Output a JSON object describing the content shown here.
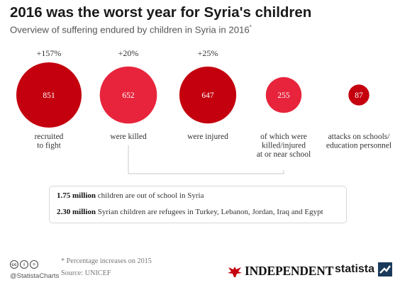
{
  "header": {
    "title": "2016 was the worst year for Syria's children",
    "subtitle": "Overview of suffering endured by children in Syria in 2016",
    "subtitle_mark": "*"
  },
  "chart_data": {
    "type": "bubble",
    "categories": [
      "recruited to fight",
      "were killed",
      "were injured",
      "of which were killed/injured at or near school",
      "attacks on schools/ education personnel"
    ],
    "values": [
      851,
      652,
      647,
      255,
      87
    ],
    "changes": [
      "+157%",
      "+20%",
      "+25%",
      "",
      ""
    ],
    "label_lines": [
      [
        "recruited",
        "to fight"
      ],
      [
        "were killed"
      ],
      [
        "were injured"
      ],
      [
        "of which were",
        "killed/injured",
        "at or near school"
      ],
      [
        "attacks on schools/",
        "education personnel"
      ]
    ],
    "colors": [
      "#c4000e",
      "#e8243c",
      "#c4000e",
      "#e8243c",
      "#c4000e"
    ]
  },
  "info": {
    "row1_amount": "1.75 million",
    "row1_text": "children are out of school in Syria",
    "row2_amount": "2.30 million",
    "row2_text": "Syrian children are refugees in Turkey, Lebanon, Jordan, Iraq and Egypt"
  },
  "footer": {
    "note": "* Percentage increases on 2015",
    "source": "Source: UNICEF",
    "handle": "@StatistaCharts",
    "cc_icons": [
      "cc",
      "i",
      "="
    ],
    "brand_independent": "INDEPENDENT",
    "brand_statista": "statista",
    "colors": {
      "statista": "#1a3a5c",
      "independent": "#c4000e"
    }
  }
}
